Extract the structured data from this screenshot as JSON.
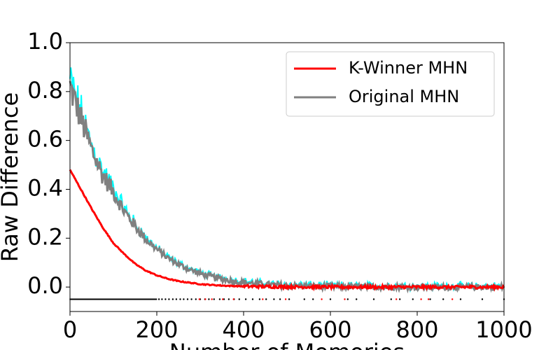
{
  "chart_data": {
    "type": "line",
    "xlabel": "Number of Memories",
    "ylabel": "Raw Difference",
    "xlim": [
      0,
      1000
    ],
    "ylim": [
      -0.1,
      1.0
    ],
    "xticks": [
      0,
      200,
      400,
      600,
      800,
      1000
    ],
    "yticks": [
      0.0,
      0.2,
      0.4,
      0.6,
      0.8,
      1.0
    ],
    "x_tick_labels": [
      "0",
      "200",
      "400",
      "600",
      "800",
      "1000"
    ],
    "y_tick_labels": [
      "0.0",
      "0.2",
      "0.4",
      "0.6",
      "0.8",
      "1.0"
    ],
    "legend_position": "top-right",
    "grid": false,
    "series": [
      {
        "name": "K-Winner MHN",
        "color": "#ff0000",
        "x": [
          0,
          25,
          50,
          75,
          100,
          125,
          150,
          175,
          200,
          225,
          250,
          300,
          350,
          400,
          450,
          500,
          600,
          700,
          800,
          900,
          1000
        ],
        "y": [
          0.48,
          0.4,
          0.32,
          0.245,
          0.18,
          0.135,
          0.095,
          0.067,
          0.048,
          0.034,
          0.024,
          0.012,
          0.006,
          0.003,
          0.002,
          0.001,
          0.0,
          0.0,
          0.0,
          0.0,
          0.0
        ]
      },
      {
        "name": "Original MHN",
        "color": "#808080",
        "band_color": "#00ffff",
        "x": [
          0,
          25,
          50,
          75,
          100,
          125,
          150,
          175,
          200,
          225,
          250,
          275,
          300,
          325,
          350,
          375,
          400,
          450,
          500,
          600,
          700,
          800,
          900,
          1000
        ],
        "y": [
          0.82,
          0.69,
          0.56,
          0.46,
          0.39,
          0.31,
          0.25,
          0.195,
          0.155,
          0.12,
          0.093,
          0.072,
          0.055,
          0.043,
          0.033,
          0.025,
          0.019,
          0.011,
          0.006,
          0.002,
          0.001,
          0.0,
          0.0,
          0.0
        ]
      }
    ],
    "markers": {
      "black_y": -0.05,
      "red_y": -0.05,
      "black_dense_end": 200,
      "black_sparse_x": [
        205,
        212,
        220,
        228,
        237,
        245,
        254,
        262,
        271,
        280,
        290,
        300,
        311,
        320,
        332,
        345,
        355,
        366,
        378,
        390,
        405,
        421,
        437,
        452,
        470,
        484,
        505,
        540,
        560,
        600,
        640,
        660,
        700,
        740,
        760,
        790,
        830,
        860,
        900,
        950,
        1000
      ],
      "red_sparse_x": [
        298,
        312,
        327,
        352,
        377,
        444,
        497,
        580,
        633,
        752,
        809,
        826,
        881
      ]
    }
  }
}
